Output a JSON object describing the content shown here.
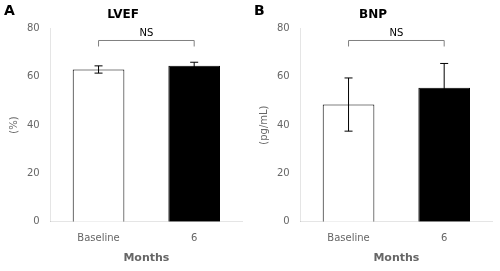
{
  "chart_data": [
    {
      "type": "bar",
      "panel_label": "A",
      "title": "LVEF",
      "xlabel": "Months",
      "ylabel": "(%)",
      "categories": [
        "Baseline",
        "6"
      ],
      "values": [
        63.0,
        64.5
      ],
      "errors": [
        1.5,
        1.5
      ],
      "colors": [
        "white",
        "black"
      ],
      "ylim": [
        0,
        80
      ],
      "yticks": [
        0,
        20,
        40,
        60,
        80
      ],
      "grid": false,
      "legend": false,
      "annotations": [
        {
          "text": "NS",
          "y": 75,
          "from": "Baseline",
          "to": "6"
        }
      ]
    },
    {
      "type": "bar",
      "panel_label": "B",
      "title": "BNP",
      "xlabel": "Months",
      "ylabel": "(pg/mL)",
      "categories": [
        "Baseline",
        "6"
      ],
      "values": [
        48.5,
        55.5
      ],
      "errors": [
        11.0,
        10.0
      ],
      "colors": [
        "white",
        "black"
      ],
      "ylim": [
        0,
        80
      ],
      "yticks": [
        0,
        20,
        40,
        60,
        80
      ],
      "grid": false,
      "legend": false,
      "annotations": [
        {
          "text": "NS",
          "y": 75,
          "from": "Baseline",
          "to": "6"
        }
      ]
    }
  ]
}
